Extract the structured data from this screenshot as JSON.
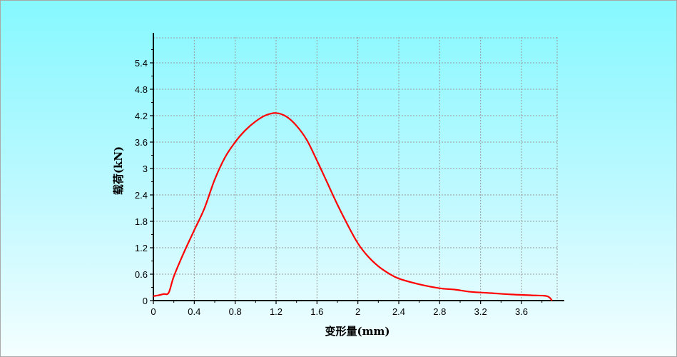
{
  "chart_data": {
    "type": "line",
    "xlabel": "变形量(mm)",
    "ylabel": "载荷(kN)",
    "xlim": [
      0,
      4.0
    ],
    "ylim": [
      0,
      6.0
    ],
    "x_ticks": [
      "0",
      "0.4",
      "0.8",
      "1.2",
      "1.6",
      "2",
      "2.4",
      "2.8",
      "3.2",
      "3.6"
    ],
    "y_ticks": [
      "0",
      "0.6",
      "1.2",
      "1.8",
      "2.4",
      "3",
      "3.6",
      "4.2",
      "4.8",
      "5.4"
    ],
    "grid": true,
    "colors": {
      "line": "#ff0000",
      "grid": "#9a9a9a",
      "axis": "#000000"
    },
    "series": [
      {
        "x": [
          0,
          0.05,
          0.1,
          0.15,
          0.2,
          0.3,
          0.4,
          0.5,
          0.6,
          0.7,
          0.8,
          0.9,
          1.0,
          1.1,
          1.2,
          1.3,
          1.4,
          1.5,
          1.6,
          1.7,
          1.8,
          1.9,
          2.0,
          2.1,
          2.2,
          2.3,
          2.4,
          2.6,
          2.8,
          2.95,
          3.1,
          3.3,
          3.5,
          3.7,
          3.85,
          3.9
        ],
        "y": [
          0.1,
          0.12,
          0.15,
          0.18,
          0.55,
          1.1,
          1.6,
          2.1,
          2.75,
          3.25,
          3.6,
          3.87,
          4.07,
          4.21,
          4.26,
          4.18,
          3.97,
          3.65,
          3.18,
          2.68,
          2.18,
          1.72,
          1.3,
          1.0,
          0.78,
          0.62,
          0.5,
          0.37,
          0.28,
          0.25,
          0.2,
          0.17,
          0.14,
          0.12,
          0.1,
          0.0
        ]
      }
    ]
  }
}
